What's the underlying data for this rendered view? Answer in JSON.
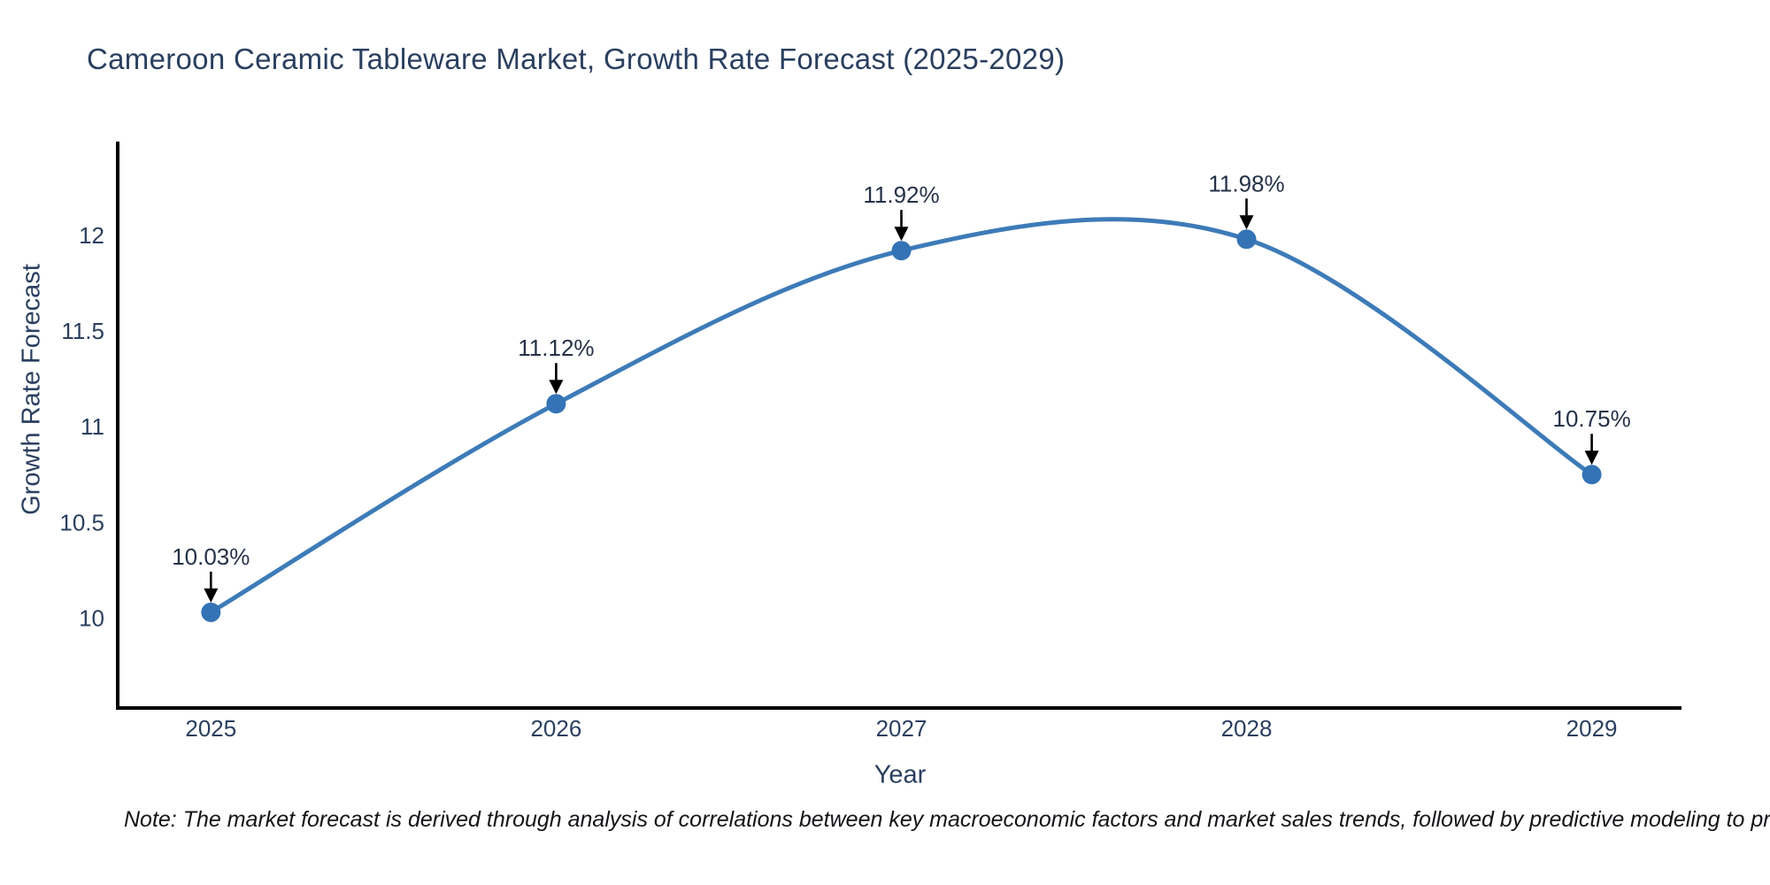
{
  "chart_data": {
    "type": "line",
    "title": "Cameroon Ceramic Tableware Market, Growth Rate Forecast (2025-2029)",
    "xlabel": "Year",
    "ylabel": "Growth Rate Forecast",
    "x": [
      2025,
      2026,
      2027,
      2028,
      2029
    ],
    "values": [
      10.03,
      11.12,
      11.92,
      11.98,
      10.75
    ],
    "point_labels": [
      "10.03%",
      "11.12%",
      "11.92%",
      "11.98%",
      "10.75%"
    ],
    "xticks": [
      "2025",
      "2026",
      "2027",
      "2028",
      "2029"
    ],
    "yticks": [
      10,
      10.5,
      11,
      11.5,
      12
    ],
    "xlim": [
      2024.73,
      2029.26
    ],
    "ylim": [
      9.53,
      12.49
    ],
    "line_shape": "spline",
    "grid": false,
    "legend": "none",
    "colors": {
      "line": "#3d7bb8",
      "marker": "#3473b5",
      "axis": "#000000",
      "arrow": "#000000",
      "tick_text": "#2a3f5f",
      "annotation_text": "#243248"
    }
  },
  "note": {
    "text": "Note: The market forecast is derived through analysis of correlations between key macroeconomic factors and market sales trends, followed by predictive modeling to project future sal"
  }
}
